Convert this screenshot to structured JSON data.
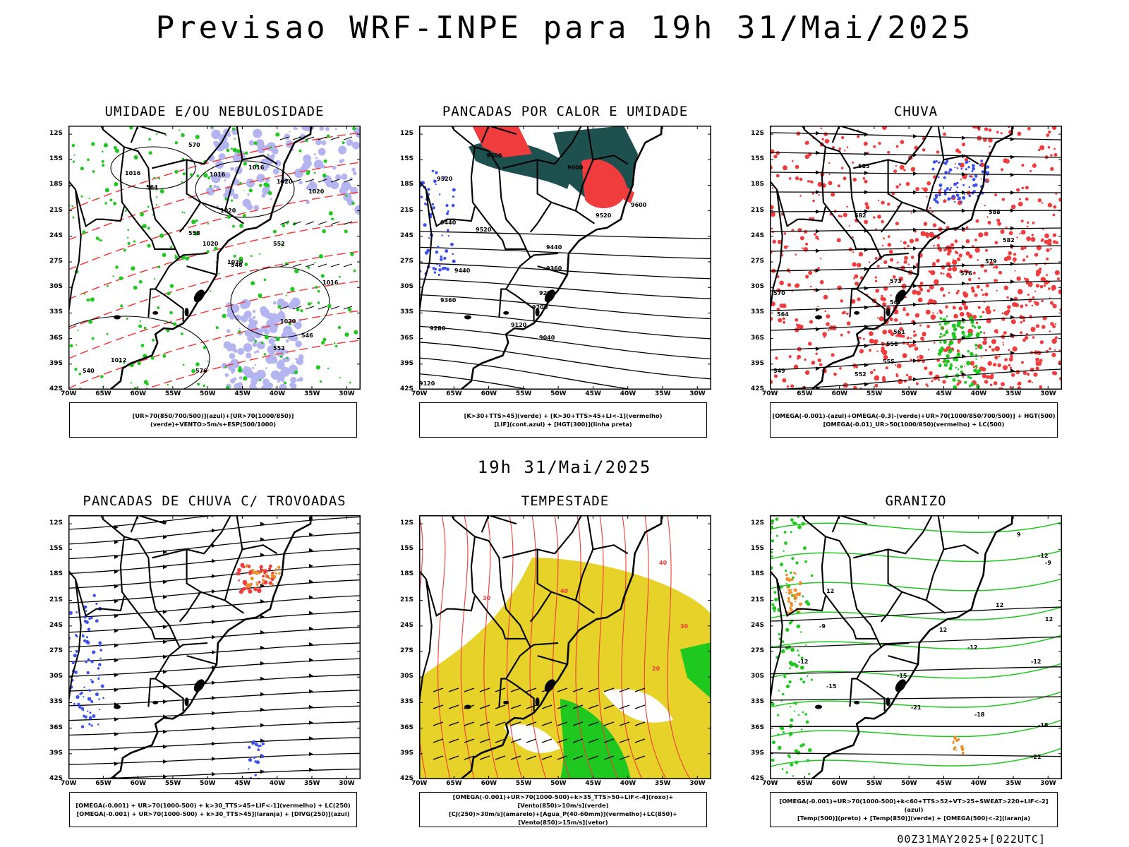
{
  "header": {
    "title": "Previsao WRF-INPE  para 19h 31/Mai/2025",
    "mid_label": "19h 31/Mai/2025"
  },
  "axes": {
    "lat_labels": [
      "12S",
      "15S",
      "18S",
      "21S",
      "24S",
      "27S",
      "30S",
      "33S",
      "36S",
      "39S",
      "42S"
    ],
    "lon_labels": [
      "70W",
      "65W",
      "60W",
      "55W",
      "50W",
      "45W",
      "40W",
      "35W",
      "30W"
    ]
  },
  "panels": [
    {
      "id": "umidade",
      "title": "UMIDADE E/OU NEBULOSIDADE",
      "legend": [
        "[UR>70(850/700/500)](azul)+[UR>70(1000/850)](verde)+VENTO>5m/s+ESP(500/1000)"
      ],
      "contour_labels": [
        "1016",
        "1016",
        "1016",
        "1020",
        "1020",
        "1020",
        "1020",
        "1020",
        "1020",
        "1016",
        "1012",
        "576",
        "570",
        "564",
        "558",
        "552",
        "546",
        "540",
        "552",
        "546"
      ]
    },
    {
      "id": "pancadas-calor",
      "title": "PANCADAS POR CALOR E UMIDADE",
      "legend": [
        "[K>30+TTS>45](verde) + [K>30+TTS>45+LI<-1](vermelho)",
        "[LIF](cont.azul) + [HGT(300)](linha preta)"
      ],
      "contour_labels": [
        "9600",
        "9600",
        "9520",
        "9520",
        "9520",
        "9440",
        "9440",
        "9440",
        "9360",
        "9360",
        "9280",
        "9200",
        "9200",
        "9120",
        "9040",
        "9120",
        "9600"
      ]
    },
    {
      "id": "chuva",
      "title": "CHUVA",
      "legend": [
        "[OMEGA(-0.001)-(azul)+OMEGA(-0.3)-(verde)+UR>70(1000/850/700/500)] + HGT(500)",
        "[OMEGA(-0.01)_UR>50(1000/850)(vermelho) + LC(500)"
      ],
      "contour_labels": [
        "585",
        "582",
        "582",
        "579",
        "576",
        "573",
        "570",
        "567",
        "564",
        "561",
        "558",
        "555",
        "552",
        "549",
        "588"
      ]
    },
    {
      "id": "pancadas-trovoadas",
      "title": "PANCADAS DE CHUVA C/ TROVOADAS",
      "legend": [
        "[OMEGA(-0.001) + UR>70(1000-500) + k>30_TTS>45+LIF<-1](vermelho) + LC(250)",
        "[OMEGA(-0.001) + UR>70(1000-500) + k>30_TTS>45](laranja) + [DIVG(250)](azul)"
      ]
    },
    {
      "id": "tempestade",
      "title": "TEMPESTADE",
      "legend": [
        "[OMEGA(-0.001)+UR>70(1000-500)+k>35_TTS>50+LIF<-4](roxo)+[Vento(850)>10m/s](verde)",
        "[CJ(250)>30m/s](amarelo)+[Agua_P(40-60mm)](vermelho)+LC(850)+[Vento(850)>15m/s](vetor)"
      ],
      "contour_labels": [
        "40",
        "30",
        "20",
        "40",
        "30"
      ]
    },
    {
      "id": "granizo",
      "title": "GRANIZO",
      "legend": [
        "[OMEGA(-0.001)+UR>70(1000-500)+k<60+TTS>52+VT>25+SWEAT>220+LIF<-2](azul)",
        "[Temp(500)](preto) + [Temp(850)](verde) + [OMEGA(500)<-2](laranja)"
      ],
      "contour_labels": [
        "-9",
        "-12",
        "-12",
        "-12",
        "-15",
        "-15",
        "-18",
        "-18",
        "-21",
        "-21",
        "-12",
        "-9",
        "9",
        "12",
        "12",
        "12",
        "12"
      ]
    }
  ],
  "colors": {
    "red": "#f03c3c",
    "green": "#1ec81e",
    "blue": "#3c50f0",
    "lavender": "#b4b4f0",
    "darkteal": "#1e5050",
    "yellow": "#e6d228",
    "orange": "#f08c28"
  },
  "footer": "00Z31MAY2025+[022UTC]"
}
